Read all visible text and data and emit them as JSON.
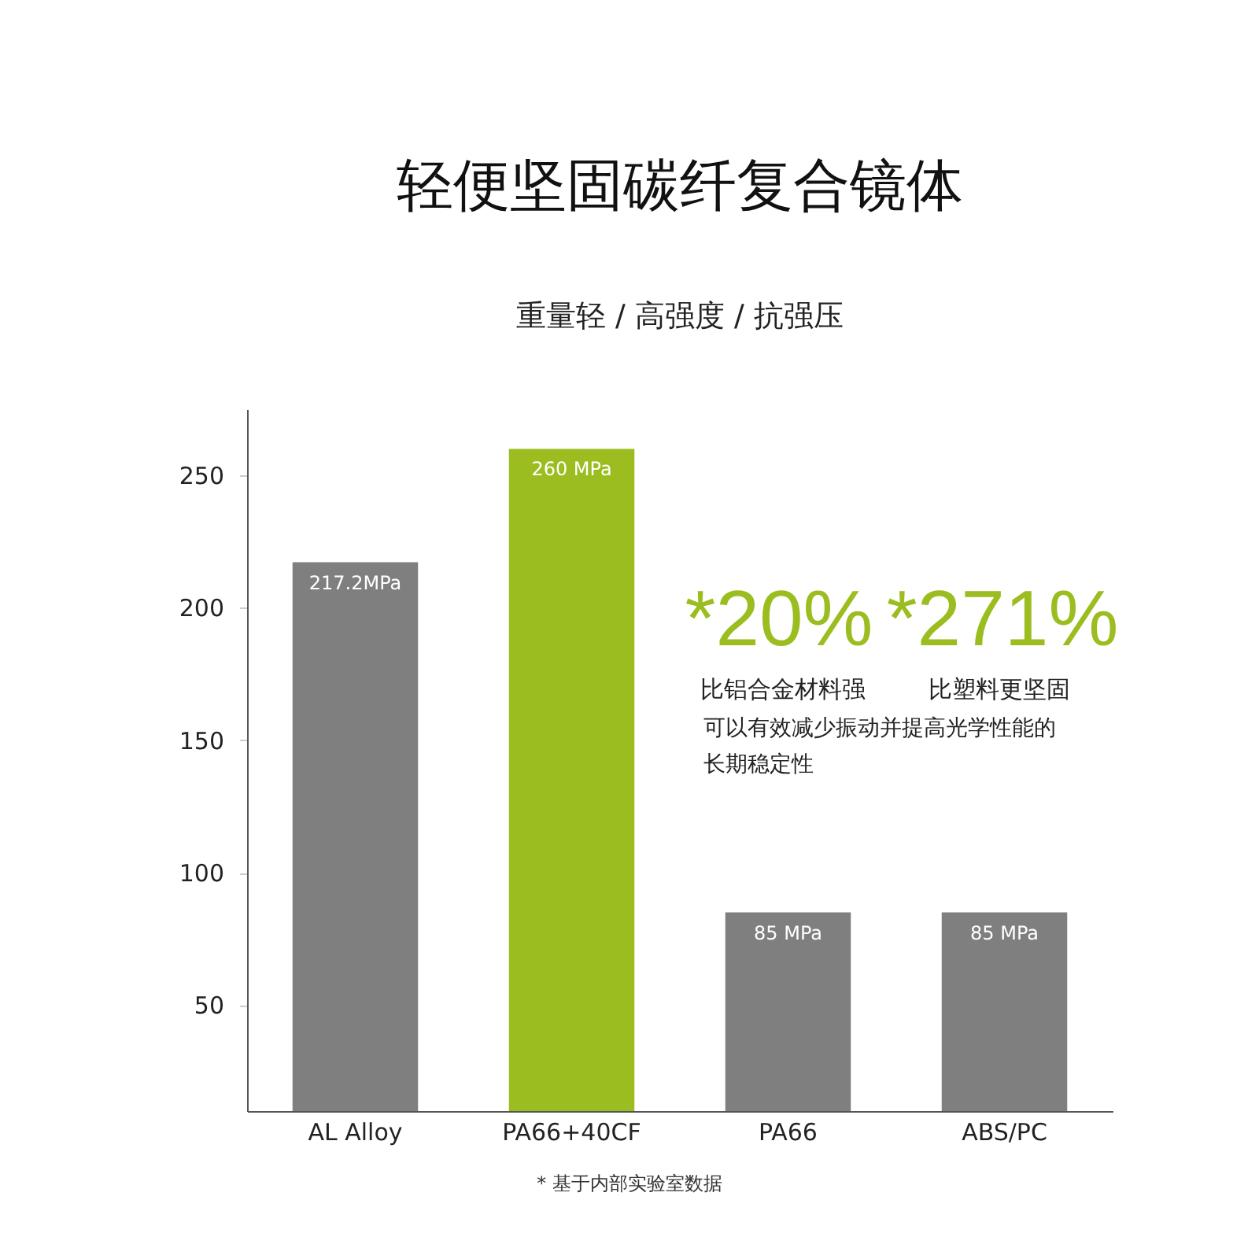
{
  "chart_data": {
    "type": "bar",
    "title": "轻便坚固碳纤复合镜体",
    "subtitle": "重量轻 / 高强度 / 抗强压",
    "categories": [
      "AL Alloy",
      "PA66+40CF",
      "PA66",
      "ABS/PC"
    ],
    "values": [
      217.2,
      260,
      85,
      85
    ],
    "colors": [
      "#7f7f7f",
      "#9bbd1f",
      "#7f7f7f",
      "#7f7f7f"
    ],
    "value_labels": [
      "217.2MPa",
      "260 MPa",
      "85 MPa",
      "85 MPa"
    ],
    "ylim": [
      10,
      275
    ],
    "yticks": [
      50,
      100,
      150,
      200,
      250
    ],
    "grid": false,
    "legend": false,
    "annotations": [
      "*20%",
      "比铝合金材料强",
      "*271%",
      "比塑料更坚固",
      "可以有效减少振动并提高光学性能的",
      "长期稳定性",
      "* 基于内部实验室数据"
    ]
  }
}
